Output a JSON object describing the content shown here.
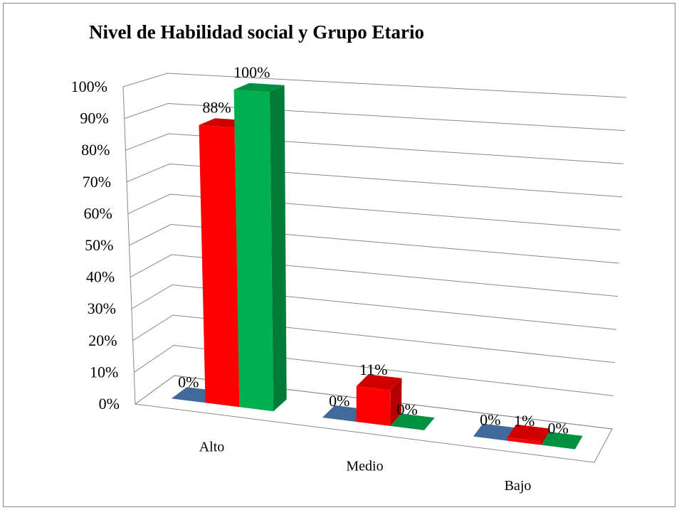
{
  "chart_data": {
    "type": "bar3d",
    "title": "Nivel de Habilidad social y Grupo Etario",
    "categories": [
      "Alto",
      "Medio",
      "Bajo"
    ],
    "series": [
      {
        "color": "#4f81bd",
        "values": [
          0,
          0,
          0
        ],
        "value_labels": [
          "0%",
          "0%",
          "0%"
        ]
      },
      {
        "color": "#ff0000",
        "values": [
          88,
          11,
          1
        ],
        "value_labels": [
          "88%",
          "11%",
          "1%"
        ]
      },
      {
        "color": "#00b050",
        "values": [
          100,
          0,
          0
        ],
        "value_labels": [
          "100%",
          "0%",
          "0%"
        ]
      }
    ],
    "ylim": [
      0,
      100
    ],
    "yticks": [
      {
        "value": 0,
        "label": "0%"
      },
      {
        "value": 10,
        "label": "10%"
      },
      {
        "value": 20,
        "label": "20%"
      },
      {
        "value": 30,
        "label": "30%"
      },
      {
        "value": 40,
        "label": "40%"
      },
      {
        "value": 50,
        "label": "50%"
      },
      {
        "value": 60,
        "label": "60%"
      },
      {
        "value": 70,
        "label": "70%"
      },
      {
        "value": 80,
        "label": "80%"
      },
      {
        "value": 90,
        "label": "90%"
      },
      {
        "value": 100,
        "label": "100%"
      }
    ],
    "grid": true
  }
}
